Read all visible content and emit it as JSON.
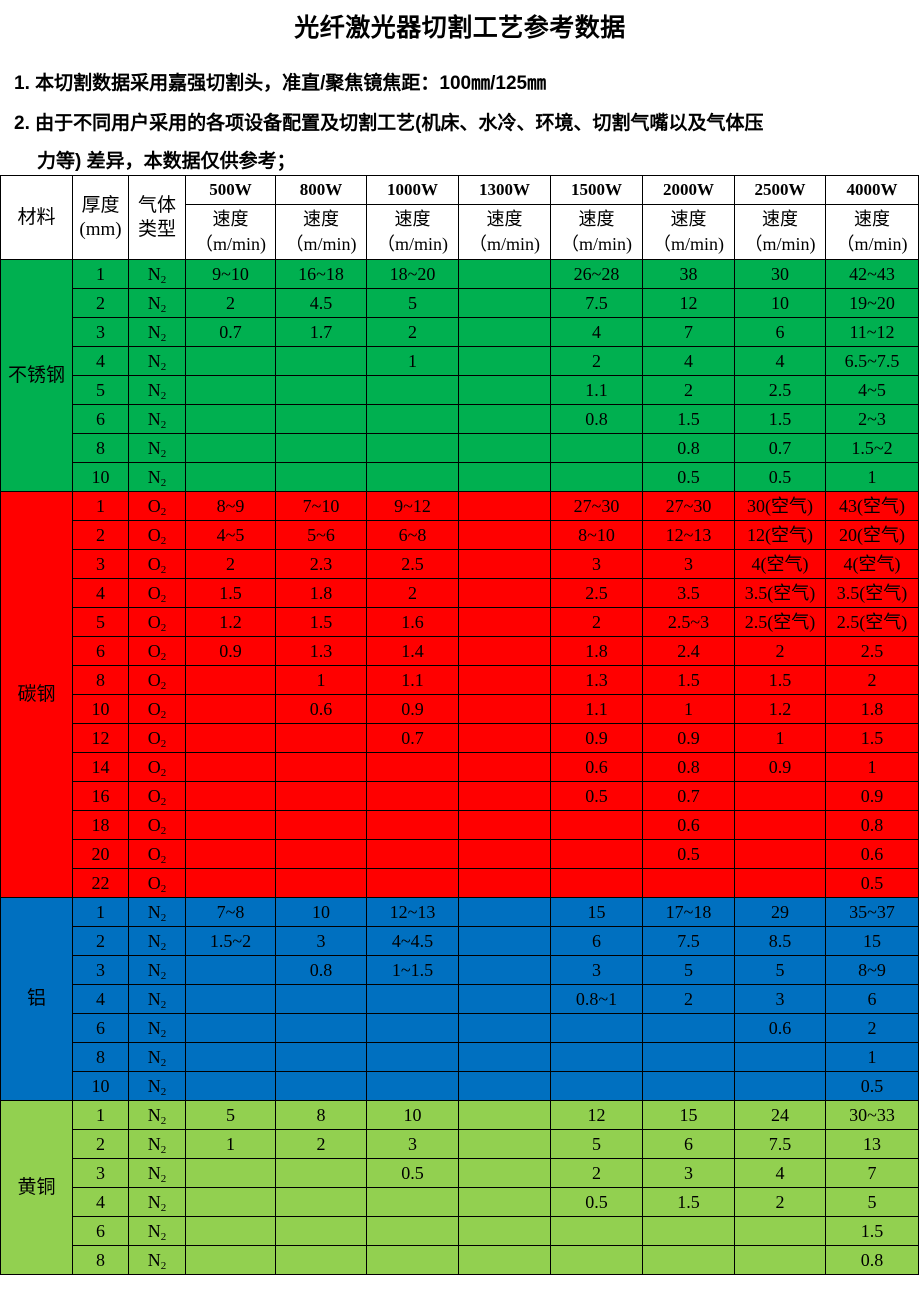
{
  "title": "光纤激光器切割工艺参考数据",
  "notes": [
    "1. 本切割数据采用嘉强切割头，准直/聚焦镜焦距：100㎜/125㎜",
    "2. 由于不同用户采用的各项设备配置及切割工艺(机床、水冷、环境、切割气嘴以及气体压",
    "力等) 差异，本数据仅供参考；"
  ],
  "header": {
    "material": "材料",
    "thickness": "厚度",
    "thickness_unit": "(mm)",
    "gas": "气体",
    "gas2": "类型",
    "powers": [
      "500W",
      "800W",
      "1000W",
      "1300W",
      "1500W",
      "2000W",
      "2500W",
      "4000W"
    ],
    "speed": "速度",
    "speed_unit": "（m/min)"
  },
  "materials": [
    {
      "name": "不锈钢",
      "gas": "N",
      "gas_sub": "2",
      "color": "#00b050",
      "rows": [
        [
          "1",
          "9~10",
          "16~18",
          "18~20",
          "",
          "26~28",
          "38",
          "30",
          "42~43"
        ],
        [
          "2",
          "2",
          "4.5",
          "5",
          "",
          "7.5",
          "12",
          "10",
          "19~20"
        ],
        [
          "3",
          "0.7",
          "1.7",
          "2",
          "",
          "4",
          "7",
          "6",
          "11~12"
        ],
        [
          "4",
          "",
          "",
          "1",
          "",
          "2",
          "4",
          "4",
          "6.5~7.5"
        ],
        [
          "5",
          "",
          "",
          "",
          "",
          "1.1",
          "2",
          "2.5",
          "4~5"
        ],
        [
          "6",
          "",
          "",
          "",
          "",
          "0.8",
          "1.5",
          "1.5",
          "2~3"
        ],
        [
          "8",
          "",
          "",
          "",
          "",
          "",
          "0.8",
          "0.7",
          "1.5~2"
        ],
        [
          "10",
          "",
          "",
          "",
          "",
          "",
          "0.5",
          "0.5",
          "1"
        ]
      ]
    },
    {
      "name": "碳钢",
      "gas": "O",
      "gas_sub": "2",
      "color": "#ff0000",
      "rows": [
        [
          "1",
          "8~9",
          "7~10",
          "9~12",
          "",
          "27~30",
          "27~30",
          "30(空气)",
          "43(空气)"
        ],
        [
          "2",
          "4~5",
          "5~6",
          "6~8",
          "",
          "8~10",
          "12~13",
          "12(空气)",
          "20(空气)"
        ],
        [
          "3",
          "2",
          "2.3",
          "2.5",
          "",
          "3",
          "3",
          "4(空气)",
          "4(空气)"
        ],
        [
          "4",
          "1.5",
          "1.8",
          "2",
          "",
          "2.5",
          "3.5",
          "3.5(空气)",
          "3.5(空气)"
        ],
        [
          "5",
          "1.2",
          "1.5",
          "1.6",
          "",
          "2",
          "2.5~3",
          "2.5(空气)",
          "2.5(空气)"
        ],
        [
          "6",
          "0.9",
          "1.3",
          "1.4",
          "",
          "1.8",
          "2.4",
          "2",
          "2.5"
        ],
        [
          "8",
          "",
          "1",
          "1.1",
          "",
          "1.3",
          "1.5",
          "1.5",
          "2"
        ],
        [
          "10",
          "",
          "0.6",
          "0.9",
          "",
          "1.1",
          "1",
          "1.2",
          "1.8"
        ],
        [
          "12",
          "",
          "",
          "0.7",
          "",
          "0.9",
          "0.9",
          "1",
          "1.5"
        ],
        [
          "14",
          "",
          "",
          "",
          "",
          "0.6",
          "0.8",
          "0.9",
          "1"
        ],
        [
          "16",
          "",
          "",
          "",
          "",
          "0.5",
          "0.7",
          "",
          "0.9"
        ],
        [
          "18",
          "",
          "",
          "",
          "",
          "",
          "0.6",
          "",
          "0.8"
        ],
        [
          "20",
          "",
          "",
          "",
          "",
          "",
          "0.5",
          "",
          "0.6"
        ],
        [
          "22",
          "",
          "",
          "",
          "",
          "",
          "",
          "",
          "0.5"
        ]
      ]
    },
    {
      "name": "铝",
      "gas": "N",
      "gas_sub": "2",
      "color": "#0070c0",
      "rows": [
        [
          "1",
          "7~8",
          "10",
          "12~13",
          "",
          "15",
          "17~18",
          "29",
          "35~37"
        ],
        [
          "2",
          "1.5~2",
          "3",
          "4~4.5",
          "",
          "6",
          "7.5",
          "8.5",
          "15"
        ],
        [
          "3",
          "",
          "0.8",
          "1~1.5",
          "",
          "3",
          "5",
          "5",
          "8~9"
        ],
        [
          "4",
          "",
          "",
          "",
          "",
          "0.8~1",
          "2",
          "3",
          "6"
        ],
        [
          "6",
          "",
          "",
          "",
          "",
          "",
          "",
          "0.6",
          "2"
        ],
        [
          "8",
          "",
          "",
          "",
          "",
          "",
          "",
          "",
          "1"
        ],
        [
          "10",
          "",
          "",
          "",
          "",
          "",
          "",
          "",
          "0.5"
        ]
      ]
    },
    {
      "name": "黄铜",
      "gas": "N",
      "gas_sub": "2",
      "color": "#92d050",
      "rows": [
        [
          "1",
          "5",
          "8",
          "10",
          "",
          "12",
          "15",
          "24",
          "30~33"
        ],
        [
          "2",
          "1",
          "2",
          "3",
          "",
          "5",
          "6",
          "7.5",
          "13"
        ],
        [
          "3",
          "",
          "",
          "0.5",
          "",
          "2",
          "3",
          "4",
          "7"
        ],
        [
          "4",
          "",
          "",
          "",
          "",
          "0.5",
          "1.5",
          "2",
          "5"
        ],
        [
          "6",
          "",
          "",
          "",
          "",
          "",
          "",
          "",
          "1.5"
        ],
        [
          "8",
          "",
          "",
          "",
          "",
          "",
          "",
          "",
          "0.8"
        ]
      ]
    }
  ]
}
